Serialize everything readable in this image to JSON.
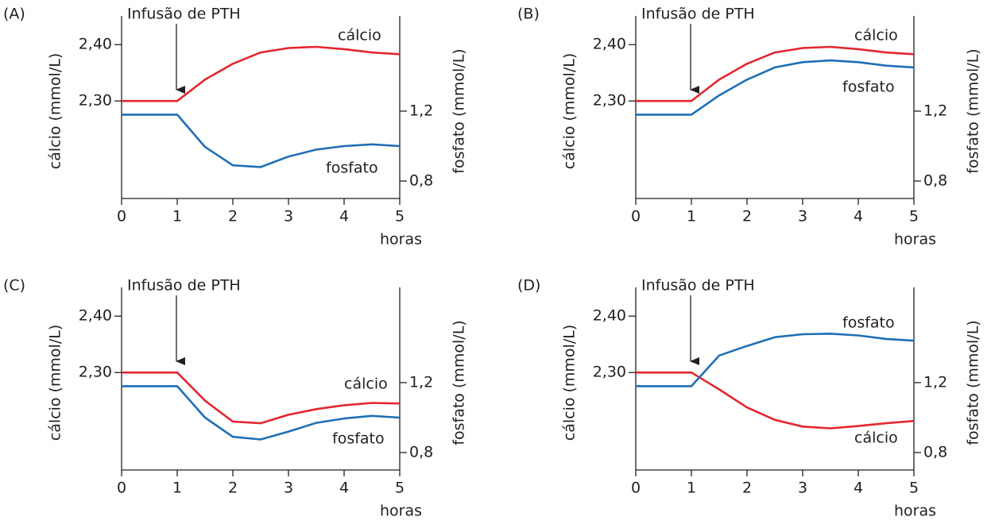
{
  "chart_data": [
    {
      "type": "line",
      "panel_label": "(A)",
      "annotation": "Infusão de PTH",
      "xlabel": "horas",
      "ylabel": "cálcio (mmol/L)",
      "y2label": "fosfato (mmol/L)",
      "x": [
        0,
        0.5,
        1,
        1.5,
        2,
        2.5,
        3,
        3.5,
        4,
        4.5,
        5
      ],
      "xlim": [
        0,
        5
      ],
      "xticks": [
        0,
        1,
        2,
        3,
        4,
        5
      ],
      "ylim": [
        2.127,
        2.451
      ],
      "yticks": [
        {
          "value": 2.3,
          "label": "2,30"
        },
        {
          "value": 2.4,
          "label": "2,40"
        }
      ],
      "y2lim": [
        0.7,
        1.745
      ],
      "y2ticks": [
        {
          "value": 0.8,
          "label": "0,8"
        },
        {
          "value": 1.2,
          "label": "1,2"
        }
      ],
      "series": [
        {
          "name": "cálcio",
          "color": "#e3262e",
          "values": [
            2.3,
            2.3,
            2.3,
            2.338,
            2.366,
            2.386,
            2.394,
            2.396,
            2.392,
            2.386,
            2.383
          ]
        },
        {
          "name": "fosfato",
          "color": "#1f6fb4",
          "axis": "y2",
          "values": [
            1.18,
            1.18,
            1.18,
            0.995,
            0.89,
            0.88,
            0.94,
            0.98,
            1.0,
            1.01,
            1.0
          ]
        }
      ]
    },
    {
      "type": "line",
      "panel_label": "(B)",
      "annotation": "Infusão de PTH",
      "xlabel": "horas",
      "ylabel": "cálcio (mmol/L)",
      "y2label": "fosfato (mmol/L)",
      "x": [
        0,
        0.5,
        1,
        1.5,
        2,
        2.5,
        3,
        3.5,
        4,
        4.5,
        5
      ],
      "xlim": [
        0,
        5
      ],
      "xticks": [
        0,
        1,
        2,
        3,
        4,
        5
      ],
      "ylim": [
        2.127,
        2.451
      ],
      "yticks": [
        {
          "value": 2.3,
          "label": "2,30"
        },
        {
          "value": 2.4,
          "label": "2,40"
        }
      ],
      "y2lim": [
        0.7,
        1.745
      ],
      "y2ticks": [
        {
          "value": 0.8,
          "label": "0,8"
        },
        {
          "value": 1.2,
          "label": "1,2"
        }
      ],
      "series": [
        {
          "name": "cálcio",
          "color": "#e3262e",
          "values": [
            2.3,
            2.3,
            2.3,
            2.338,
            2.366,
            2.386,
            2.394,
            2.396,
            2.392,
            2.386,
            2.383
          ]
        },
        {
          "name": "fosfato",
          "color": "#1f6fb4",
          "axis": "y2",
          "values": [
            1.18,
            1.18,
            1.18,
            1.29,
            1.38,
            1.45,
            1.48,
            1.49,
            1.48,
            1.46,
            1.45
          ]
        }
      ]
    },
    {
      "type": "line",
      "panel_label": "(C)",
      "annotation": "Infusão de PTH",
      "xlabel": "horas",
      "ylabel": "cálcio (mmol/L)",
      "y2label": "fosfato (mmol/L)",
      "x": [
        0,
        0.5,
        1,
        1.5,
        2,
        2.5,
        3,
        3.5,
        4,
        4.5,
        5
      ],
      "xlim": [
        0,
        5
      ],
      "xticks": [
        0,
        1,
        2,
        3,
        4,
        5
      ],
      "ylim": [
        2.127,
        2.451
      ],
      "yticks": [
        {
          "value": 2.3,
          "label": "2,30"
        },
        {
          "value": 2.4,
          "label": "2,40"
        }
      ],
      "y2lim": [
        0.7,
        1.745
      ],
      "y2ticks": [
        {
          "value": 0.8,
          "label": "0,8"
        },
        {
          "value": 1.2,
          "label": "1,2"
        }
      ],
      "series": [
        {
          "name": "cálcio",
          "color": "#e3262e",
          "values": [
            2.3,
            2.3,
            2.3,
            2.25,
            2.213,
            2.21,
            2.225,
            2.235,
            2.242,
            2.246,
            2.245
          ]
        },
        {
          "name": "fosfato",
          "color": "#1f6fb4",
          "axis": "y2",
          "values": [
            1.18,
            1.18,
            1.18,
            1.0,
            0.89,
            0.875,
            0.92,
            0.97,
            0.995,
            1.01,
            1.0
          ]
        }
      ]
    },
    {
      "type": "line",
      "panel_label": "(D)",
      "annotation": "Infusão de PTH",
      "xlabel": "horas",
      "ylabel": "cálcio (mmol/L)",
      "y2label": "fosfato (mmol/L)",
      "x": [
        0,
        0.5,
        1,
        1.5,
        2,
        2.5,
        3,
        3.5,
        4,
        4.5,
        5
      ],
      "xlim": [
        0,
        5
      ],
      "xticks": [
        0,
        1,
        2,
        3,
        4,
        5
      ],
      "ylim": [
        2.127,
        2.451
      ],
      "yticks": [
        {
          "value": 2.3,
          "label": "2,30"
        },
        {
          "value": 2.4,
          "label": "2,40"
        }
      ],
      "y2lim": [
        0.7,
        1.745
      ],
      "y2ticks": [
        {
          "value": 0.8,
          "label": "0,8"
        },
        {
          "value": 1.2,
          "label": "1,2"
        }
      ],
      "series": [
        {
          "name": "cálcio",
          "color": "#e3262e",
          "values": [
            2.3,
            2.3,
            2.3,
            2.27,
            2.238,
            2.216,
            2.204,
            2.201,
            2.205,
            2.21,
            2.214
          ]
        },
        {
          "name": "fosfato",
          "color": "#1f6fb4",
          "axis": "y2",
          "values": [
            1.18,
            1.18,
            1.18,
            1.355,
            1.41,
            1.46,
            1.477,
            1.48,
            1.47,
            1.45,
            1.44
          ]
        }
      ]
    }
  ]
}
